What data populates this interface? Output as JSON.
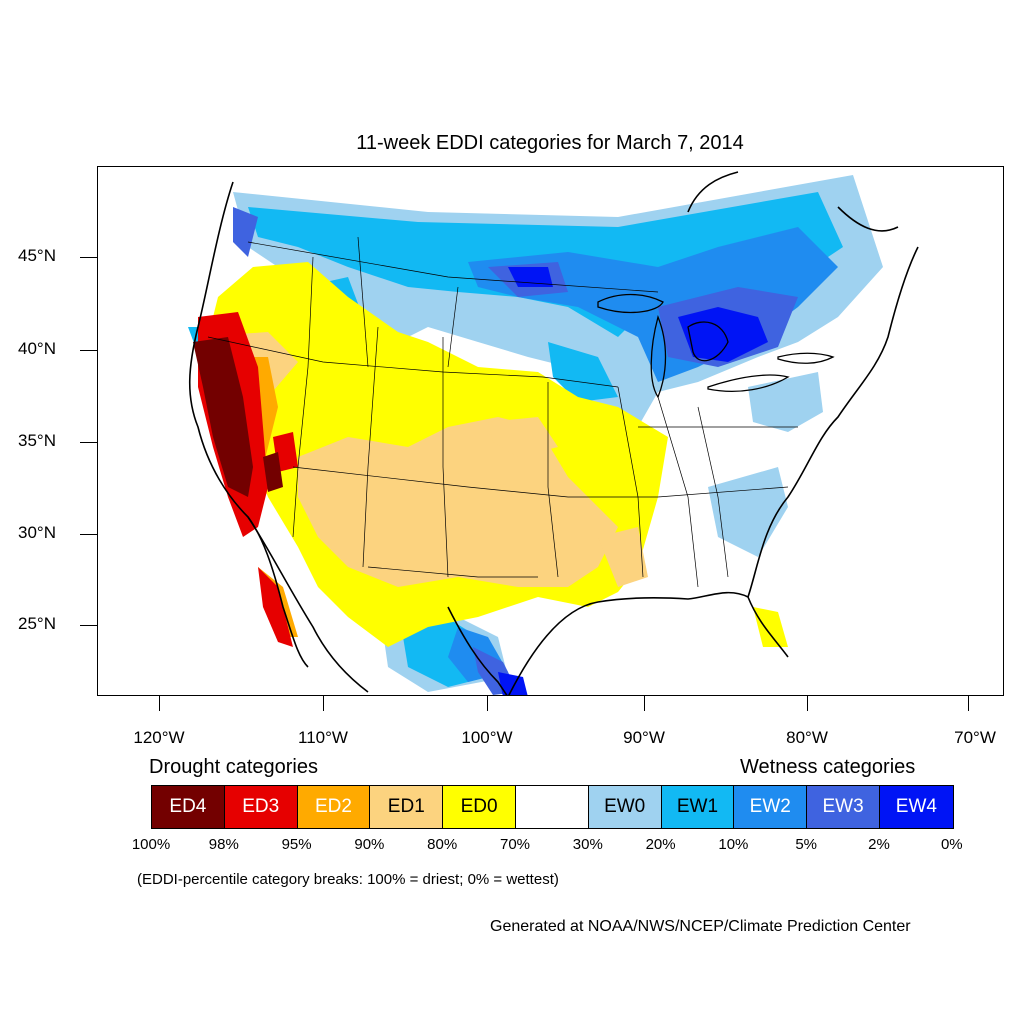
{
  "title": "11-week EDDI categories for March 7, 2014",
  "map": {
    "lat_labels": [
      "45°N",
      "40°N",
      "35°N",
      "30°N",
      "25°N"
    ],
    "lon_labels": [
      "120°W",
      "110°W",
      "100°W",
      "90°W",
      "80°W",
      "70°W"
    ]
  },
  "legend": {
    "drought_heading": "Drought categories",
    "wetness_heading": "Wetness categories",
    "categories": [
      {
        "label": "ED4",
        "color": "#730000",
        "text_color": "#ffffff"
      },
      {
        "label": "ED3",
        "color": "#e60000",
        "text_color": "#ffffff"
      },
      {
        "label": "ED2",
        "color": "#ffaa00",
        "text_color": "#ffffff"
      },
      {
        "label": "ED1",
        "color": "#fcd37f",
        "text_color": "#000000"
      },
      {
        "label": "ED0",
        "color": "#ffff00",
        "text_color": "#000000"
      },
      {
        "label": "",
        "color": "#ffffff",
        "text_color": "#000000"
      },
      {
        "label": "EW0",
        "color": "#9fd2f0",
        "text_color": "#000000"
      },
      {
        "label": "EW1",
        "color": "#12b9f3",
        "text_color": "#000000"
      },
      {
        "label": "EW2",
        "color": "#1f8cf0",
        "text_color": "#ffffff"
      },
      {
        "label": "EW3",
        "color": "#3f63e0",
        "text_color": "#ffffff"
      },
      {
        "label": "EW4",
        "color": "#0014f5",
        "text_color": "#ffffff"
      }
    ],
    "percent_breaks": [
      "100%",
      "98%",
      "95%",
      "90%",
      "80%",
      "70%",
      "30%",
      "20%",
      "10%",
      "5%",
      "2%",
      "0%"
    ],
    "note": "(EDDI-percentile category breaks: 100% = driest; 0% = wettest)"
  },
  "credit": "Generated at NOAA/NWS/NCEP/Climate Prediction Center"
}
